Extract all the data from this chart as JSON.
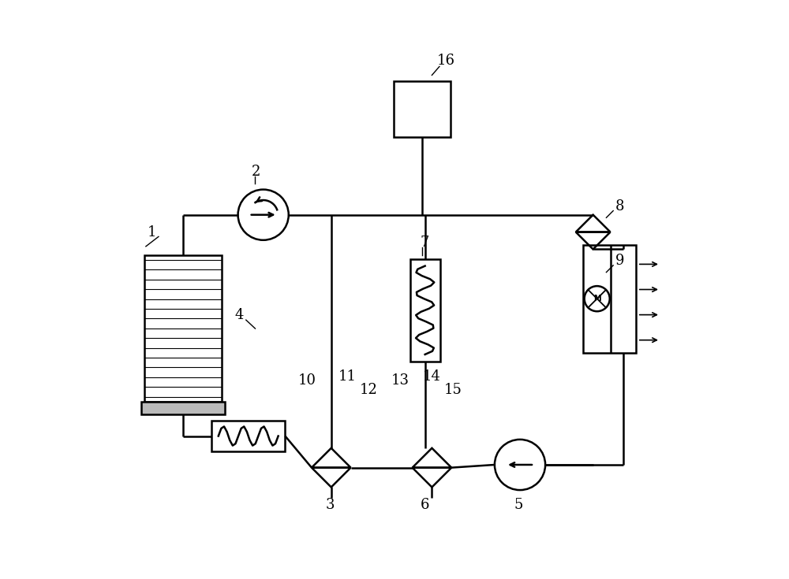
{
  "bg_color": "#ffffff",
  "line_color": "#000000",
  "lw": 1.8,
  "fig_w": 10.0,
  "fig_h": 7.35,
  "dpi": 100
}
